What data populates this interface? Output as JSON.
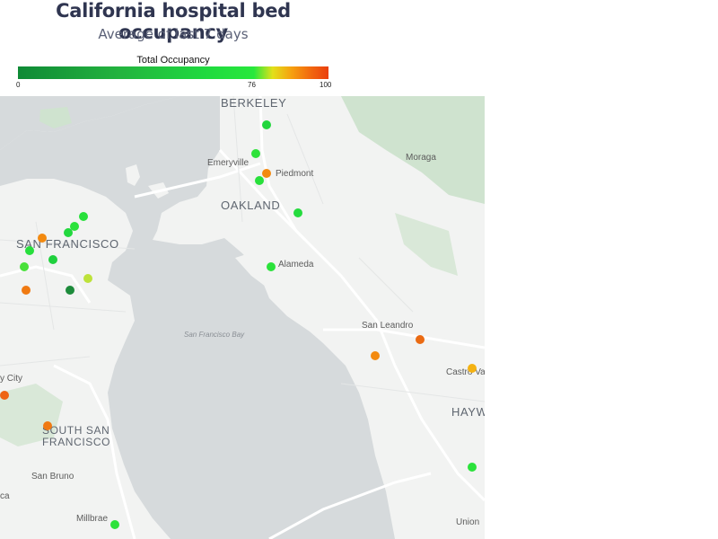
{
  "title": "California hospital bed occupancy",
  "subtitle": "Average of last 7 days",
  "legend": {
    "title": "Total Occupancy",
    "ticks": [
      "0",
      "76",
      "100"
    ],
    "min": 0,
    "max": 100,
    "colors": [
      "#0f8a36",
      "#23b23e",
      "#1fd93f",
      "#28e83c",
      "#e2e01a",
      "#f6a10f",
      "#f26a0e",
      "#ea3f0d"
    ]
  },
  "map": {
    "water_color": "#d6dadc",
    "land_color": "#f2f3f2",
    "park_color": "#cfe3cf",
    "labels": {
      "berkeley": "BERKELEY",
      "emeryville": "Emeryville",
      "piedmont": "Piedmont",
      "moraga": "Moraga",
      "oakland": "OAKLAND",
      "san_francisco": "SAN FRANCISCO",
      "alameda": "Alameda",
      "san_leandro": "San Leandro",
      "sf_bay": "San Francisco Bay",
      "daly_city": "y City",
      "castro_valley": "Castro Va",
      "south_sf_line1": "SOUTH SAN",
      "south_sf_line2": "FRANCISCO",
      "hayward": "HAYW",
      "san_bruno": "San Bruno",
      "ca": "ca",
      "millbrae": "Millbrae",
      "union": "Union"
    }
  },
  "hospitals": [
    {
      "occupancy": 79,
      "color": "#22d63e"
    },
    {
      "occupancy": 78,
      "color": "#2ee23a"
    },
    {
      "occupancy": 90,
      "color": "#f38a10"
    },
    {
      "occupancy": 78,
      "color": "#28e03b"
    },
    {
      "occupancy": 77,
      "color": "#24db3d"
    },
    {
      "occupancy": 78,
      "color": "#28e03b"
    },
    {
      "occupancy": 78,
      "color": "#2be23b"
    },
    {
      "occupancy": 77,
      "color": "#22d83e"
    },
    {
      "occupancy": 90,
      "color": "#f38a10"
    },
    {
      "occupancy": 78,
      "color": "#27df3c"
    },
    {
      "occupancy": 76,
      "color": "#1fd03d"
    },
    {
      "occupancy": 80,
      "color": "#48e03a"
    },
    {
      "occupancy": 82,
      "color": "#bde23a"
    },
    {
      "occupancy": 91,
      "color": "#f07a12"
    },
    {
      "occupancy": 15,
      "color": "#1d8b3b"
    },
    {
      "occupancy": 78,
      "color": "#2be23b"
    },
    {
      "occupancy": 90,
      "color": "#f38a10"
    },
    {
      "occupancy": 94,
      "color": "#ea6a12"
    },
    {
      "occupancy": 86,
      "color": "#f4b212"
    },
    {
      "occupancy": 94,
      "color": "#ee6414"
    },
    {
      "occupancy": 91,
      "color": "#f07a12"
    },
    {
      "occupancy": 78,
      "color": "#2be23b"
    },
    {
      "occupancy": 78,
      "color": "#2ee23a"
    }
  ]
}
